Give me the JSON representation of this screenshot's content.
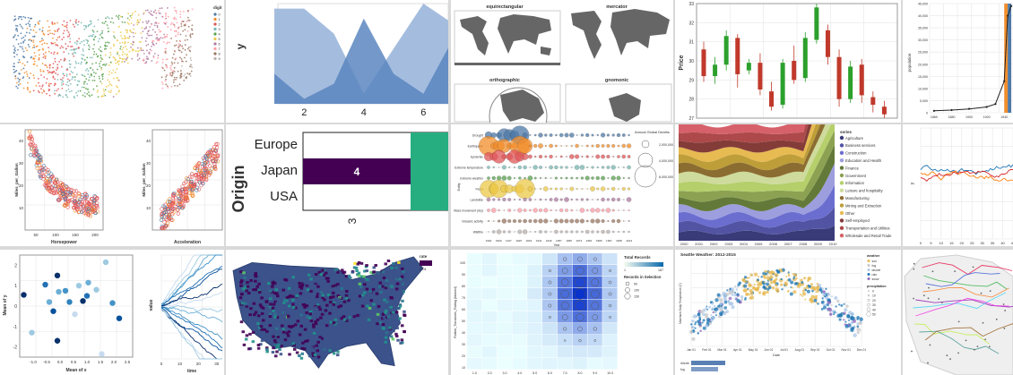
{
  "chart_data": [
    {
      "id": "dots-us",
      "type": "scatter",
      "title": "",
      "legend_title": "digit",
      "legend": [
        "0",
        "1",
        "2",
        "3",
        "4",
        "5",
        "6",
        "7",
        "8",
        "9"
      ]
    },
    {
      "id": "area-y",
      "type": "area",
      "ylabel": "y",
      "x_ticks": [
        "2",
        "4",
        "6"
      ],
      "x": [
        1,
        2,
        3,
        4,
        5,
        6,
        7
      ],
      "series": [
        {
          "values": [
            0.95,
            0.95,
            0.7,
            0.1,
            0.55,
            1.0,
            0.8
          ]
        },
        {
          "values": [
            0.3,
            0.05,
            0.2,
            0.85,
            0.3,
            0.1,
            0.65
          ]
        }
      ]
    },
    {
      "id": "projections",
      "type": "map",
      "titles": [
        "equirectangular",
        "mercator",
        "orthographic",
        "gnomonic"
      ]
    },
    {
      "id": "candles",
      "type": "candlestick",
      "ylabel": "Price",
      "y_ticks": [
        "27",
        "28",
        "29",
        "30",
        "31",
        "32",
        "33"
      ],
      "ylim": [
        27,
        33
      ],
      "candles": [
        {
          "o": 30.6,
          "c": 29.2,
          "h": 31.0,
          "l": 28.9
        },
        {
          "o": 29.2,
          "c": 29.8,
          "h": 30.2,
          "l": 28.8
        },
        {
          "o": 29.8,
          "c": 31.3,
          "h": 31.6,
          "l": 29.5
        },
        {
          "o": 31.2,
          "c": 29.3,
          "h": 31.4,
          "l": 28.6
        },
        {
          "o": 29.5,
          "c": 29.9,
          "h": 30.1,
          "l": 29.3
        },
        {
          "o": 29.9,
          "c": 28.5,
          "h": 30.4,
          "l": 28.2
        },
        {
          "o": 28.4,
          "c": 27.6,
          "h": 28.9,
          "l": 27.4
        },
        {
          "o": 27.7,
          "c": 29.9,
          "h": 30.1,
          "l": 27.5
        },
        {
          "o": 30.0,
          "c": 29.0,
          "h": 30.8,
          "l": 28.8
        },
        {
          "o": 29.1,
          "c": 31.2,
          "h": 31.5,
          "l": 28.9
        },
        {
          "o": 31.1,
          "c": 32.8,
          "h": 33.0,
          "l": 30.9
        },
        {
          "o": 31.6,
          "c": 30.2,
          "h": 31.9,
          "l": 29.8
        },
        {
          "o": 30.2,
          "c": 28.0,
          "h": 30.6,
          "l": 27.6
        },
        {
          "o": 28.0,
          "c": 29.7,
          "h": 30.0,
          "l": 27.8
        },
        {
          "o": 29.8,
          "c": 28.2,
          "h": 30.1,
          "l": 27.8
        },
        {
          "o": 28.1,
          "c": 27.7,
          "h": 28.4,
          "l": 27.3
        },
        {
          "o": 27.6,
          "c": 27.2,
          "h": 27.9,
          "l": 27.0
        }
      ]
    },
    {
      "id": "population",
      "type": "bar",
      "ylabel": "population",
      "y_ticks": [
        "0",
        "5,000",
        "10,000",
        "15,000",
        "20,000",
        "25,000",
        "30,000",
        "35,000",
        "40,000",
        "45,000"
      ],
      "x_ticks": [
        "1860",
        "1880",
        "1900",
        "1920",
        "1940"
      ],
      "line_points": [
        [
          1860,
          800
        ],
        [
          1880,
          1100
        ],
        [
          1900,
          1600
        ],
        [
          1920,
          2400
        ],
        [
          1930,
          3600
        ],
        [
          1940,
          13000
        ],
        [
          1944,
          40000
        ],
        [
          1948,
          44000
        ]
      ],
      "bars": [
        {
          "start": 1940,
          "end": 1944,
          "color": "#f28e2c"
        },
        {
          "start": 1944,
          "end": 1948,
          "color": "#4e79a7"
        }
      ]
    },
    {
      "id": "hp-mpg",
      "type": "scatter",
      "xlabel": "Horsepower",
      "ylabel": "Miles_per_Gallon",
      "x_ticks": [
        "50",
        "100",
        "150",
        "200"
      ],
      "y_ticks": [
        "10",
        "20",
        "30",
        "40"
      ]
    },
    {
      "id": "acc-mpg",
      "type": "scatter",
      "xlabel": "Acceleration",
      "ylabel": "Miles_per_Gallon",
      "y_ticks": [
        "10",
        "20",
        "30",
        "40"
      ]
    },
    {
      "id": "origin-heat",
      "type": "heatmap",
      "ylabel": "Origin",
      "rows": [
        "Europe",
        "Japan",
        "USA"
      ],
      "cell_label": "4",
      "x_tick": "3"
    },
    {
      "id": "disasters",
      "type": "scatter",
      "xlabel": "Year",
      "ylabel": "Entity",
      "legend_title": "Annual Global Deaths",
      "legend": [
        "2,000,000",
        "4,000,000",
        "6,000,000"
      ],
      "rows": [
        "Drought",
        "Earthquake",
        "Epidemic",
        "Extreme temperature",
        "Extreme weather",
        "Flood",
        "Landslide",
        "Mass movement (dry)",
        "Volcanic activity",
        "Wildfire"
      ],
      "x_ticks": [
        "1900",
        "1909",
        "1917",
        "1925",
        "1933",
        "1941",
        "1949",
        "1957",
        "1965",
        "1973",
        "1981",
        "1989",
        "1997",
        "2005",
        "2013"
      ]
    },
    {
      "id": "unemployment",
      "type": "area",
      "legend_title": "series",
      "legend": [
        "Agriculture",
        "Business services",
        "Construction",
        "Education and Health",
        "Finance",
        "Government",
        "Information",
        "Leisure and hospitality",
        "Manufacturing",
        "Mining and Extraction",
        "Other",
        "Self-employed",
        "Transportation and Utilities",
        "Wholesale and Retail Trade"
      ],
      "x_ticks": [
        "2000",
        "2001",
        "2002",
        "2003",
        "2004",
        "2005",
        "2006",
        "2007",
        "2008",
        "2009",
        "2010"
      ]
    },
    {
      "id": "lines-y",
      "type": "line",
      "ylabel": "y",
      "x_ticks": [
        "0",
        "5",
        "10",
        "15",
        "20",
        "25",
        "30",
        "35",
        "40",
        "45"
      ]
    },
    {
      "id": "mean-xy",
      "type": "scatter",
      "xlabel": "Mean of x",
      "ylabel": "Mean of y",
      "x_ticks": [
        "-1.0",
        "-0.5",
        "0.0",
        "0.5",
        "1.0",
        "1.5",
        "2.0",
        "2.5"
      ],
      "y_ticks": [
        "-2",
        "-1",
        "0",
        "1",
        "2"
      ],
      "points": [
        {
          "x": -1.35,
          "y": 0.55,
          "c": "#08306b"
        },
        {
          "x": -1.05,
          "y": -1.3,
          "c": "#9ecae1"
        },
        {
          "x": -0.55,
          "y": 1.05,
          "c": "#2171b5"
        },
        {
          "x": -0.4,
          "y": 0.2,
          "c": "#6baed6"
        },
        {
          "x": -0.25,
          "y": -0.25,
          "c": "#08519c"
        },
        {
          "x": -0.1,
          "y": 1.5,
          "c": "#08306b"
        },
        {
          "x": -0.05,
          "y": 0.7,
          "c": "#6baed6"
        },
        {
          "x": -0.1,
          "y": -1.7,
          "c": "#08306b"
        },
        {
          "x": 0.2,
          "y": 0.75,
          "c": "#4292c6"
        },
        {
          "x": 0.35,
          "y": 0.2,
          "c": "#3182bd"
        },
        {
          "x": 0.55,
          "y": -0.4,
          "c": "#c6dbef"
        },
        {
          "x": 0.7,
          "y": 1.0,
          "c": "#9ecae1"
        },
        {
          "x": 0.85,
          "y": 0.25,
          "c": "#08306b"
        },
        {
          "x": 1.0,
          "y": 0.5,
          "c": "#2171b5"
        },
        {
          "x": 1.05,
          "y": 1.15,
          "c": "#6baed6"
        },
        {
          "x": 1.35,
          "y": 0.8,
          "c": "#9ecae1"
        },
        {
          "x": 1.55,
          "y": -2.35,
          "c": "#c6dbef"
        },
        {
          "x": 1.7,
          "y": 2.15,
          "c": "#9ecae1"
        },
        {
          "x": 1.95,
          "y": 0.15,
          "c": "#4292c6"
        },
        {
          "x": 2.2,
          "y": -0.6,
          "c": "#08519c"
        }
      ]
    },
    {
      "id": "walks",
      "type": "line",
      "xlabel": "time",
      "ylabel": "value",
      "x_ticks": [
        "0",
        "10",
        "20",
        "30"
      ]
    },
    {
      "id": "rate-map",
      "type": "map",
      "legend_title": "rate",
      "legend": [
        "0.01"
      ]
    },
    {
      "id": "movies-heat",
      "type": "heatmap",
      "ylabel": "Rotten_Tomatoes_Rating (binned)",
      "y_ticks": [
        "10",
        "20",
        "30",
        "40",
        "50",
        "60",
        "70",
        "80",
        "90",
        "100"
      ],
      "x_ticks": [
        "1.0",
        "2.0",
        "3.0",
        "4.0",
        "5.0",
        "6.0",
        "7.0",
        "8.0",
        "9.0",
        "10.0"
      ],
      "legend_title": "Total Records",
      "legend_range": [
        "1",
        "167"
      ],
      "legend2_title": "Records in Selection",
      "legend2": [
        "50",
        "100",
        "150"
      ]
    },
    {
      "id": "seattle",
      "type": "scatter",
      "title": "Seattle Weather: 2012-2015",
      "ylabel": "Maximum Daily Temperature (C)",
      "xlabel": "Date",
      "x_ticks": [
        "Jan 01",
        "Feb 01",
        "Mar 01",
        "Apr 01",
        "May 01",
        "Jun 01",
        "Jul 01",
        "Aug 01",
        "Sep 01",
        "Oct 01",
        "Nov 01",
        "Dec 01"
      ],
      "legend_title": "weather",
      "legend": [
        "sun",
        "fog",
        "drizzle",
        "rain",
        "snow"
      ],
      "legend2_title": "precipitation",
      "legend2": [
        "0",
        "10",
        "20",
        "30",
        "40",
        "50"
      ],
      "bar_labels": [
        "drizzle",
        "fog"
      ]
    },
    {
      "id": "transit-map",
      "type": "map"
    }
  ]
}
